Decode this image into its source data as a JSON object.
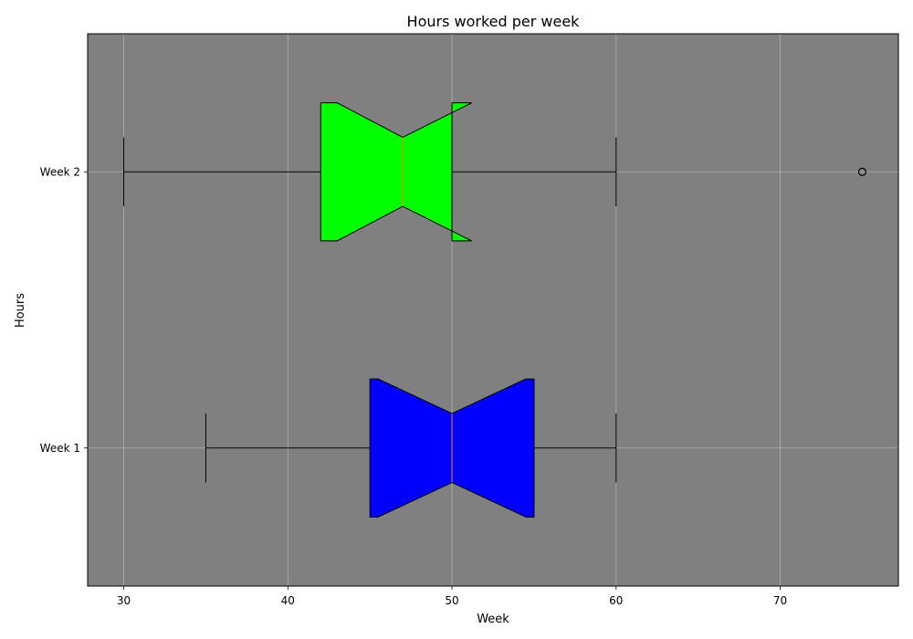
{
  "chart_data": {
    "type": "boxplot",
    "orientation": "horizontal",
    "notched": true,
    "title": "Hours worked per week",
    "xlabel": "Week",
    "ylabel": "Hours",
    "xlim": [
      27.8,
      77.2
    ],
    "x_ticks": [
      30,
      40,
      50,
      60,
      70
    ],
    "grid": true,
    "plot_background": "#808080",
    "categories": [
      "Week 1",
      "Week 2"
    ],
    "series": [
      {
        "name": "Week 1",
        "color": "#0000ff",
        "whisker_low": 35,
        "q1": 45,
        "median": 50,
        "q3": 55,
        "whisker_high": 60,
        "notch_low": 45.5,
        "notch_high": 54.5,
        "outliers": []
      },
      {
        "name": "Week 2",
        "color": "#00ff00",
        "whisker_low": 30,
        "q1": 42,
        "median": 47,
        "q3": 50,
        "whisker_high": 60,
        "notch_low": 43,
        "notch_high": 51.2,
        "outliers": [
          75
        ]
      }
    ],
    "median_color": "#ff7f0e"
  }
}
